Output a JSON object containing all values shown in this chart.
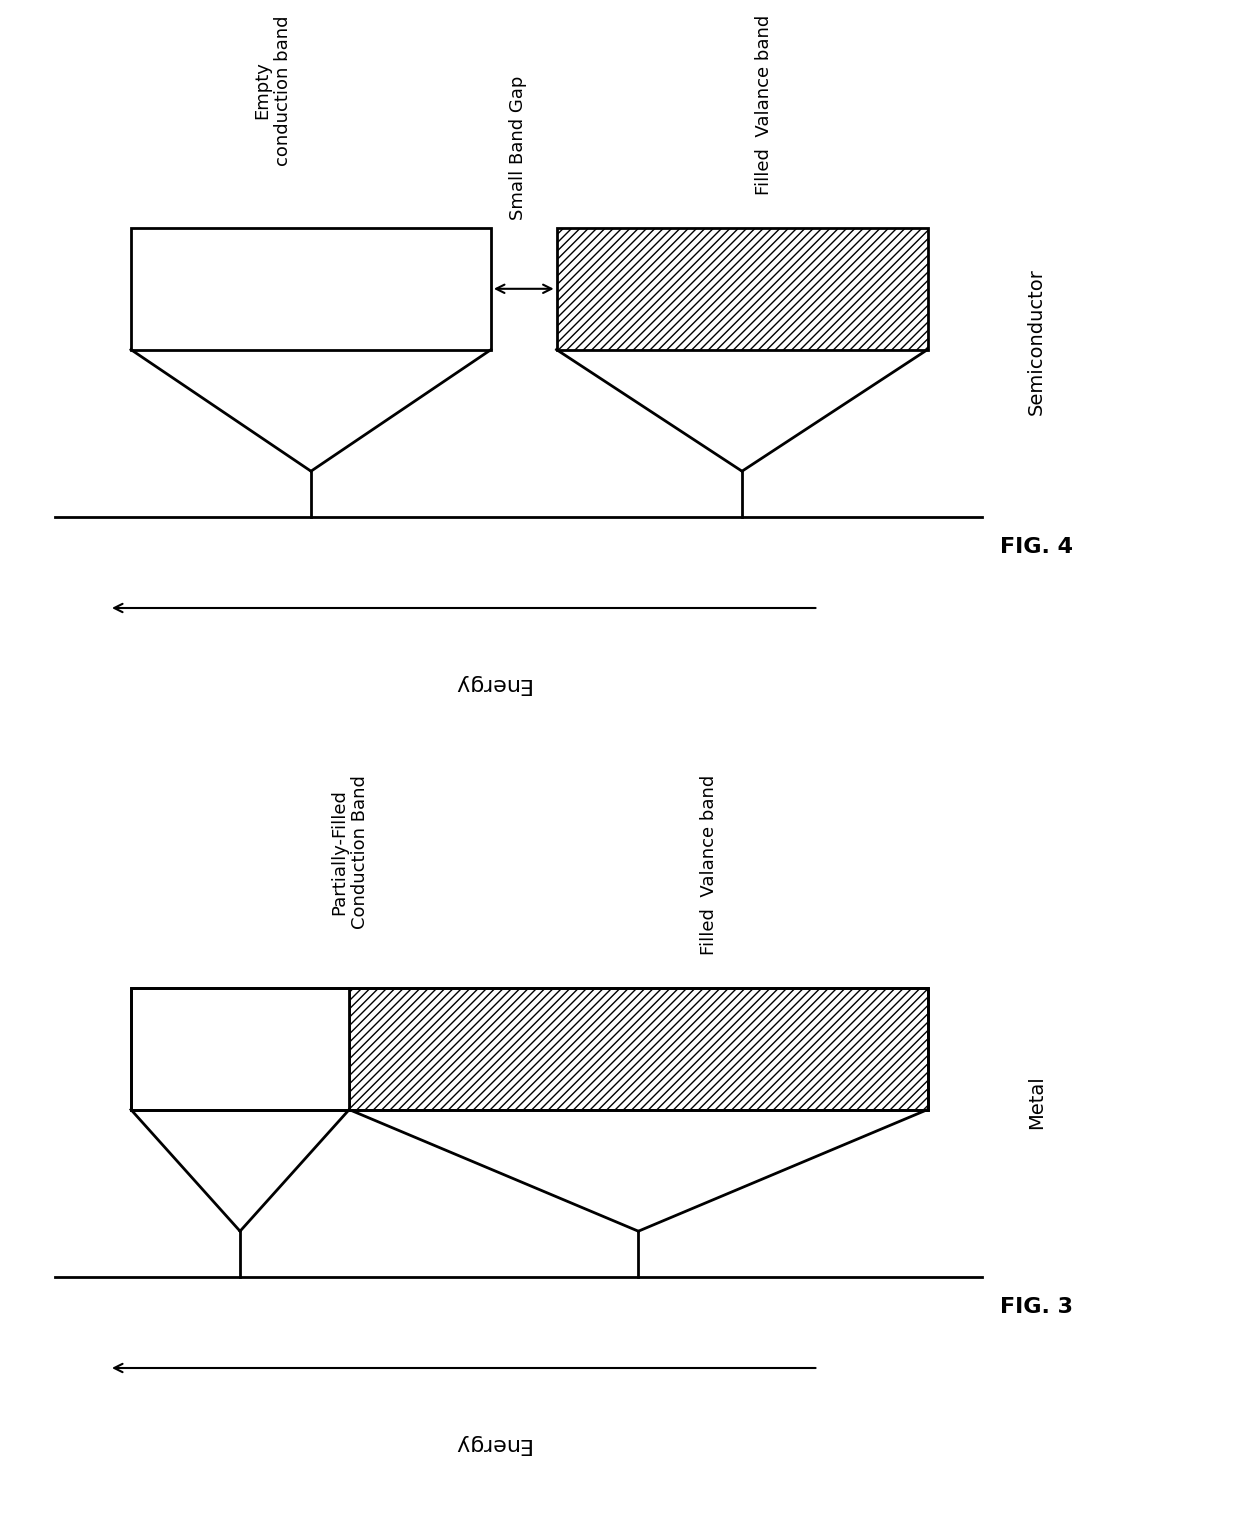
{
  "fig_width": 12.4,
  "fig_height": 15.2,
  "bg_color": "#ffffff",
  "line_color": "#000000",
  "hatch_pattern": "////",
  "fig3_label": "FIG. 3",
  "fig4_label": "FIG. 4",
  "semiconductor_label": "Semiconductor",
  "metal_label": "Metal",
  "energy_label": "Energy",
  "lw": 2.0,
  "fig3_texts": {
    "partially_filled": "Partially-Filled\nConduction Band",
    "filled_valance_metal": "Filled  Valance band"
  },
  "fig4_texts": {
    "empty_conduction": "Empty\nconduction band",
    "small_band_gap": "Small Band Gap",
    "filled_valance_semi": "Filled  Valance band"
  }
}
